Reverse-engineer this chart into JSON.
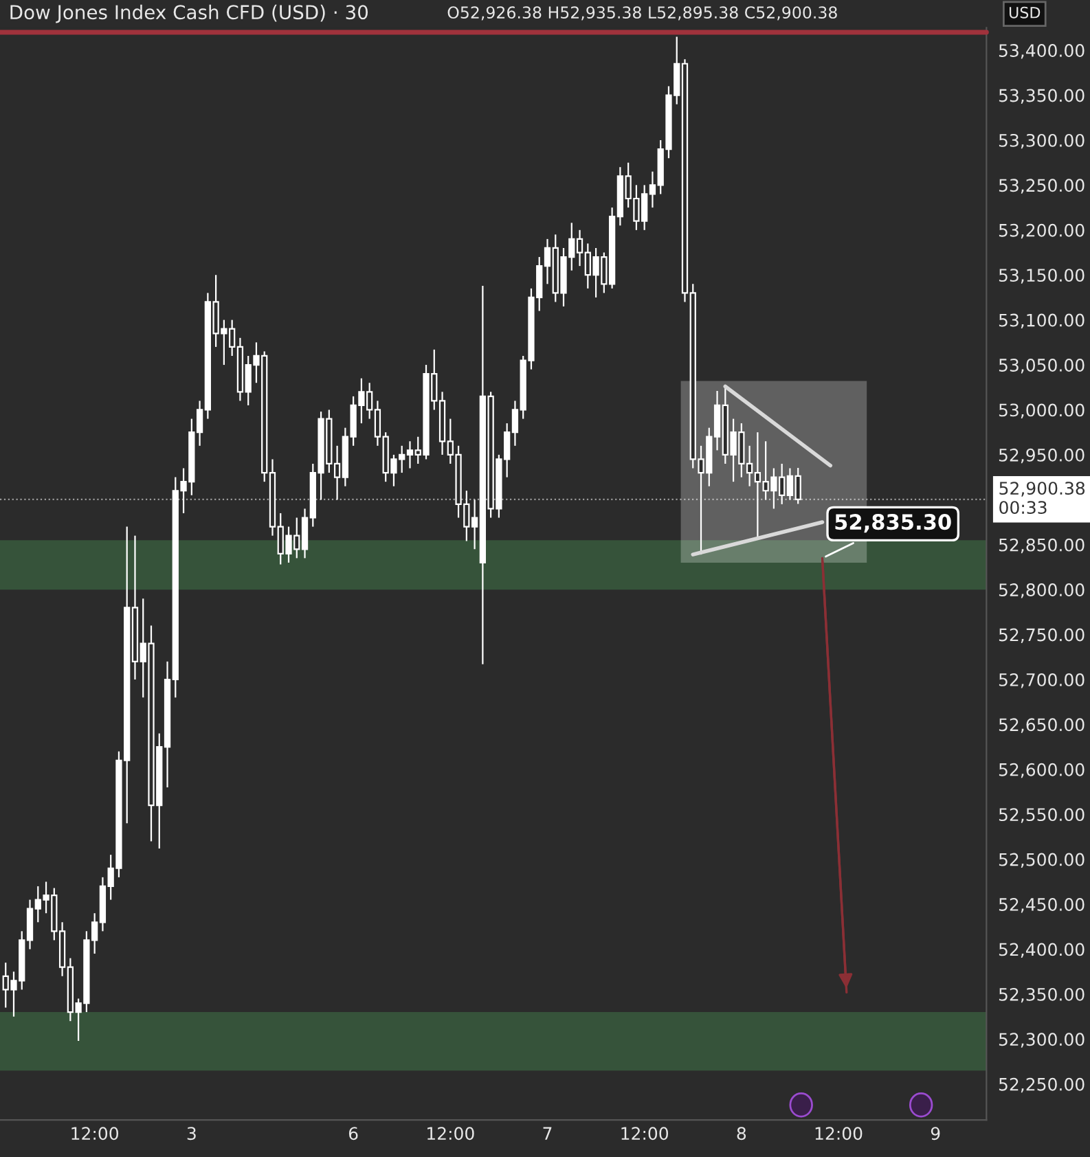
{
  "chart_data": {
    "type": "candlestick",
    "title": "Dow Jones Index Cash CFD (USD) · 30",
    "annotations": [
      "O52,926.38 H52,935.38 L52,895.38 C52,900.38",
      "USD",
      "52,835.30"
    ],
    "categories": [
      null,
      null,
      null,
      null,
      null,
      null,
      null,
      null,
      null,
      null,
      null,
      "12:00",
      null,
      null,
      null,
      null,
      null,
      null,
      null,
      null,
      null,
      null,
      null,
      "3",
      null,
      null,
      null,
      null,
      null,
      null,
      null,
      null,
      null,
      null,
      null,
      null,
      null,
      null,
      null,
      null,
      null,
      null,
      null,
      "6",
      null,
      null,
      null,
      null,
      null,
      null,
      null,
      null,
      null,
      null,
      null,
      "12:00",
      null,
      null,
      null,
      null,
      null,
      null,
      null,
      null,
      null,
      null,
      null,
      "7",
      null,
      null,
      null,
      null,
      null,
      null,
      null,
      null,
      null,
      null,
      null,
      "12:00",
      null,
      null,
      null,
      null,
      null,
      null,
      null,
      null,
      null,
      null,
      null,
      "8",
      null,
      null,
      null,
      null,
      null,
      null,
      null,
      null,
      null,
      null,
      null,
      "12:00",
      null,
      null,
      null,
      null,
      null,
      null,
      null,
      null,
      null,
      null,
      null,
      "9",
      null,
      null,
      null,
      null,
      null
    ],
    "ylim": [
      52210,
      53425
    ],
    "yticks": [
      {
        "value": 52250,
        "label": "52,250.00"
      },
      {
        "value": 52300,
        "label": "52,300.00"
      },
      {
        "value": 52350,
        "label": "52,350.00"
      },
      {
        "value": 52400,
        "label": "52,400.00"
      },
      {
        "value": 52450,
        "label": "52,450.00"
      },
      {
        "value": 52500,
        "label": "52,500.00"
      },
      {
        "value": 52550,
        "label": "52,550.00"
      },
      {
        "value": 52600,
        "label": "52,600.00"
      },
      {
        "value": 52650,
        "label": "52,650.00"
      },
      {
        "value": 52700,
        "label": "52,700.00"
      },
      {
        "value": 52750,
        "label": "52,750.00"
      },
      {
        "value": 52800,
        "label": "52,800.00"
      },
      {
        "value": 52850,
        "label": "52,850.00"
      },
      {
        "value": 52950,
        "label": "52,950.00"
      },
      {
        "value": 53000,
        "label": "53,000.00"
      },
      {
        "value": 53050,
        "label": "53,050.00"
      },
      {
        "value": 53100,
        "label": "53,100.00"
      },
      {
        "value": 53150,
        "label": "53,150.00"
      },
      {
        "value": 53200,
        "label": "53,200.00"
      },
      {
        "value": 53250,
        "label": "53,250.00"
      },
      {
        "value": 53300,
        "label": "53,300.00"
      },
      {
        "value": 53350,
        "label": "53,350.00"
      },
      {
        "value": 53400,
        "label": "53,400.00"
      }
    ],
    "bands": [
      {
        "axis": "y",
        "from": 52800,
        "to": 52855,
        "color": "#36533a"
      },
      {
        "axis": "y",
        "from": 52265,
        "to": 52330,
        "color": "#36533a"
      }
    ],
    "ref_lines": [
      {
        "axis": "y",
        "value": 52900.38,
        "label": "52,900.38\n00:33",
        "color": "#9a9a9a",
        "line_style": "dotted"
      },
      {
        "axis": "y",
        "value": 53420,
        "color": "#a0323c",
        "line_style": "solid"
      }
    ],
    "series": [
      {
        "color": "#ffffff",
        "ohlc": [
          [
            52370,
            52385,
            52335,
            52355
          ],
          [
            52355,
            52375,
            52325,
            52365
          ],
          [
            52365,
            52420,
            52355,
            52410
          ],
          [
            52410,
            52455,
            52400,
            52445
          ],
          [
            52445,
            52470,
            52430,
            52455
          ],
          [
            52455,
            52475,
            52440,
            52460
          ],
          [
            52460,
            52468,
            52410,
            52420
          ],
          [
            52420,
            52430,
            52370,
            52380
          ],
          [
            52380,
            52390,
            52320,
            52330
          ],
          [
            52330,
            52345,
            52298,
            52340
          ],
          [
            52340,
            52420,
            52330,
            52410
          ],
          [
            52410,
            52440,
            52395,
            52430
          ],
          [
            52430,
            52480,
            52420,
            52470
          ],
          [
            52470,
            52505,
            52455,
            52490
          ],
          [
            52490,
            52620,
            52480,
            52610
          ],
          [
            52610,
            52870,
            52540,
            52780
          ],
          [
            52780,
            52860,
            52700,
            52720
          ],
          [
            52720,
            52790,
            52680,
            52740
          ],
          [
            52740,
            52760,
            52520,
            52560
          ],
          [
            52560,
            52640,
            52512,
            52625
          ],
          [
            52625,
            52720,
            52580,
            52700
          ],
          [
            52700,
            52925,
            52680,
            52910
          ],
          [
            52910,
            52935,
            52885,
            52920
          ],
          [
            52920,
            52990,
            52905,
            52975
          ],
          [
            52975,
            53010,
            52960,
            53000
          ],
          [
            53000,
            53130,
            52990,
            53120
          ],
          [
            53120,
            53150,
            53070,
            53085
          ],
          [
            53085,
            53100,
            53050,
            53090
          ],
          [
            53090,
            53100,
            53060,
            53070
          ],
          [
            53070,
            53080,
            53010,
            53020
          ],
          [
            53020,
            53060,
            53005,
            53050
          ],
          [
            53050,
            53075,
            53030,
            53060
          ],
          [
            53060,
            53065,
            52920,
            52930
          ],
          [
            52930,
            52945,
            52860,
            52870
          ],
          [
            52870,
            52885,
            52828,
            52840
          ],
          [
            52840,
            52870,
            52830,
            52860
          ],
          [
            52860,
            52880,
            52835,
            52845
          ],
          [
            52845,
            52890,
            52835,
            52880
          ],
          [
            52880,
            52940,
            52870,
            52930
          ],
          [
            52930,
            52998,
            52900,
            52990
          ],
          [
            52990,
            53000,
            52930,
            52940
          ],
          [
            52940,
            52960,
            52900,
            52925
          ],
          [
            52925,
            52980,
            52915,
            52970
          ],
          [
            52970,
            53015,
            52960,
            53005
          ],
          [
            53005,
            53035,
            52985,
            53020
          ],
          [
            53020,
            53030,
            52990,
            53000
          ],
          [
            53000,
            53010,
            52960,
            52970
          ],
          [
            52970,
            52975,
            52920,
            52930
          ],
          [
            52930,
            52950,
            52915,
            52945
          ],
          [
            52945,
            52960,
            52930,
            52950
          ],
          [
            52950,
            52965,
            52935,
            52955
          ],
          [
            52955,
            52970,
            52940,
            52950
          ],
          [
            52950,
            53050,
            52945,
            53040
          ],
          [
            53040,
            53067,
            53000,
            53010
          ],
          [
            53010,
            53020,
            52950,
            52965
          ],
          [
            52965,
            52990,
            52940,
            52950
          ],
          [
            52950,
            52960,
            52880,
            52895
          ],
          [
            52895,
            52910,
            52854,
            52870
          ],
          [
            52870,
            52900,
            52845,
            52880
          ],
          [
            52830,
            53138,
            52717,
            53015
          ],
          [
            53015,
            53020,
            52880,
            52890
          ],
          [
            52890,
            52950,
            52880,
            52945
          ],
          [
            52945,
            52985,
            52925,
            52975
          ],
          [
            52975,
            53010,
            52960,
            53000
          ],
          [
            53000,
            53060,
            52990,
            53055
          ],
          [
            53055,
            53135,
            53045,
            53125
          ],
          [
            53125,
            53170,
            53110,
            53160
          ],
          [
            53160,
            53190,
            53140,
            53180
          ],
          [
            53180,
            53195,
            53120,
            53130
          ],
          [
            53130,
            53180,
            53115,
            53170
          ],
          [
            53170,
            53208,
            53155,
            53190
          ],
          [
            53190,
            53200,
            53160,
            53175
          ],
          [
            53175,
            53185,
            53135,
            53150
          ],
          [
            53150,
            53180,
            53125,
            53170
          ],
          [
            53170,
            53175,
            53130,
            53140
          ],
          [
            53140,
            53225,
            53135,
            53215
          ],
          [
            53215,
            53270,
            53205,
            53260
          ],
          [
            53260,
            53275,
            53225,
            53235
          ],
          [
            53235,
            53250,
            53200,
            53210
          ],
          [
            53210,
            53250,
            53200,
            53240
          ],
          [
            53240,
            53265,
            53225,
            53250
          ],
          [
            53250,
            53300,
            53240,
            53290
          ],
          [
            53290,
            53360,
            53280,
            53350
          ],
          [
            53350,
            53415,
            53340,
            53385
          ],
          [
            53385,
            53390,
            53120,
            53130
          ],
          [
            53130,
            53140,
            52935,
            52945
          ],
          [
            52945,
            52960,
            52839,
            52930
          ],
          [
            52930,
            52980,
            52915,
            52970
          ],
          [
            52970,
            53021,
            52955,
            53005
          ],
          [
            53005,
            53024,
            52940,
            52950
          ],
          [
            52950,
            52990,
            52920,
            52975
          ],
          [
            52975,
            52985,
            52925,
            52940
          ],
          [
            52940,
            52960,
            52915,
            52930
          ],
          [
            52930,
            52975,
            52858,
            52920
          ],
          [
            52920,
            52965,
            52900,
            52910
          ],
          [
            52910,
            52935,
            52890,
            52925
          ],
          [
            52925,
            52940,
            52895,
            52905
          ],
          [
            52905,
            52935,
            52900,
            52926.38
          ],
          [
            52926.38,
            52935.38,
            52895.38,
            52900.38
          ],
          null,
          null,
          null,
          null,
          null,
          null,
          null,
          null,
          null,
          null,
          null,
          null,
          null,
          null,
          null,
          null,
          null,
          null,
          null,
          null,
          null,
          null
        ]
      },
      {
        "type": "line",
        "color": "#d9d9d9",
        "values": [
          null,
          null,
          null,
          null,
          null,
          null,
          null,
          null,
          null,
          null,
          null,
          null,
          null,
          null,
          null,
          null,
          null,
          null,
          null,
          null,
          null,
          null,
          null,
          null,
          null,
          null,
          null,
          null,
          null,
          null,
          null,
          null,
          null,
          null,
          null,
          null,
          null,
          null,
          null,
          null,
          null,
          null,
          null,
          null,
          null,
          null,
          null,
          null,
          null,
          null,
          null,
          null,
          null,
          null,
          null,
          null,
          null,
          null,
          null,
          null,
          null,
          null,
          null,
          null,
          null,
          null,
          null,
          null,
          null,
          null,
          null,
          null,
          null,
          null,
          null,
          null,
          null,
          null,
          null,
          null,
          null,
          null,
          null,
          null,
          null,
          null,
          null,
          null,
          null,
          53026,
          null,
          null,
          null,
          null,
          null,
          null,
          null,
          null,
          null,
          null,
          null,
          null,
          52938,
          null,
          null,
          null,
          null,
          null,
          null,
          null,
          null,
          null,
          null,
          null,
          null,
          null,
          null,
          null,
          null,
          null,
          null
        ]
      },
      {
        "type": "line",
        "color": "#d9d9d9",
        "values": [
          null,
          null,
          null,
          null,
          null,
          null,
          null,
          null,
          null,
          null,
          null,
          null,
          null,
          null,
          null,
          null,
          null,
          null,
          null,
          null,
          null,
          null,
          null,
          null,
          null,
          null,
          null,
          null,
          null,
          null,
          null,
          null,
          null,
          null,
          null,
          null,
          null,
          null,
          null,
          null,
          null,
          null,
          null,
          null,
          null,
          null,
          null,
          null,
          null,
          null,
          null,
          null,
          null,
          null,
          null,
          null,
          null,
          null,
          null,
          null,
          null,
          null,
          null,
          null,
          null,
          null,
          null,
          null,
          null,
          null,
          null,
          null,
          null,
          null,
          null,
          null,
          null,
          null,
          null,
          null,
          null,
          null,
          null,
          null,
          null,
          52839,
          null,
          null,
          null,
          null,
          null,
          null,
          null,
          null,
          null,
          null,
          null,
          null,
          null,
          null,
          null,
          52875,
          null,
          null,
          null,
          null,
          null,
          null,
          null,
          null,
          null,
          null,
          null,
          null,
          null,
          null,
          null,
          null,
          null,
          null,
          null
        ]
      },
      {
        "type": "line",
        "color": "#8b2f35",
        "values": [
          null,
          null,
          null,
          null,
          null,
          null,
          null,
          null,
          null,
          null,
          null,
          null,
          null,
          null,
          null,
          null,
          null,
          null,
          null,
          null,
          null,
          null,
          null,
          null,
          null,
          null,
          null,
          null,
          null,
          null,
          null,
          null,
          null,
          null,
          null,
          null,
          null,
          null,
          null,
          null,
          null,
          null,
          null,
          null,
          null,
          null,
          null,
          null,
          null,
          null,
          null,
          null,
          null,
          null,
          null,
          null,
          null,
          null,
          null,
          null,
          null,
          null,
          null,
          null,
          null,
          null,
          null,
          null,
          null,
          null,
          null,
          null,
          null,
          null,
          null,
          null,
          null,
          null,
          null,
          null,
          null,
          null,
          null,
          null,
          null,
          null,
          null,
          null,
          null,
          null,
          null,
          null,
          null,
          null,
          null,
          null,
          null,
          null,
          null,
          null,
          null,
          52835,
          null,
          null,
          52352,
          null,
          null,
          null,
          null,
          null,
          null,
          null,
          null,
          null,
          null,
          null,
          null,
          null,
          null,
          null,
          null
        ]
      }
    ]
  }
}
